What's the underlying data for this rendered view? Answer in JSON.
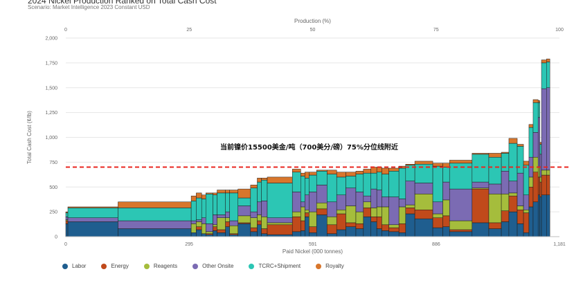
{
  "title": "2024 Nickel Production Ranked on Total Cash Cost",
  "subtitle": "Scenario: Market Intelligence 2023 Constant USD",
  "chart_data": {
    "type": "bar",
    "subtype": "stacked cost curve (variable-width)",
    "top_axis": {
      "label": "Production (%)",
      "ticks": [
        "0",
        "25",
        "50",
        "75",
        "100"
      ],
      "range": [
        0,
        100
      ]
    },
    "xlabel": "Paid Nickel (000 tonnes)",
    "x_ticks": [
      "0",
      "295",
      "591",
      "886",
      "1,181"
    ],
    "xlim": [
      0,
      1181
    ],
    "ylabel": "Total Cash Cost (¢/lb)",
    "y_ticks": [
      "0",
      "250",
      "500",
      "750",
      "1,000",
      "1,250",
      "1,500",
      "1,750",
      "2,000"
    ],
    "ylim": [
      0,
      2000
    ],
    "grid": "horizontal",
    "annotation": {
      "text": "当前镍价15500美金/吨（700美分/磅）75%分位线附近",
      "reference_line_value": 700,
      "reference_line_color": "#e8251f"
    },
    "legend_position": "bottom",
    "series": [
      {
        "name": "Labor",
        "color": "#1f5e8f"
      },
      {
        "name": "Energy",
        "color": "#c04a1b"
      },
      {
        "name": "Reagents",
        "color": "#a5bd3c"
      },
      {
        "name": "Other Onsite",
        "color": "#7b6bb3"
      },
      {
        "name": "TCRC+Shipment",
        "color": "#2cc6b4"
      },
      {
        "name": "Royalty",
        "color": "#d8762c"
      }
    ],
    "bars": [
      {
        "x0": 0,
        "x1": 5,
        "values": [
          130,
          30,
          10,
          30,
          40,
          10
        ]
      },
      {
        "x0": 5,
        "x1": 125,
        "values": [
          150,
          0,
          0,
          40,
          100,
          10
        ]
      },
      {
        "x0": 125,
        "x1": 300,
        "values": [
          80,
          0,
          0,
          80,
          130,
          60
        ]
      },
      {
        "x0": 300,
        "x1": 312,
        "values": [
          40,
          0,
          90,
          30,
          200,
          50
        ]
      },
      {
        "x0": 312,
        "x1": 325,
        "values": [
          70,
          30,
          50,
          20,
          220,
          50
        ]
      },
      {
        "x0": 325,
        "x1": 335,
        "values": [
          30,
          0,
          100,
          60,
          190,
          40
        ]
      },
      {
        "x0": 335,
        "x1": 352,
        "values": [
          20,
          10,
          20,
          80,
          300,
          10
        ]
      },
      {
        "x0": 352,
        "x1": 362,
        "values": [
          60,
          40,
          20,
          100,
          200,
          20
        ]
      },
      {
        "x0": 362,
        "x1": 382,
        "values": [
          40,
          30,
          120,
          30,
          220,
          30
        ]
      },
      {
        "x0": 382,
        "x1": 392,
        "values": [
          100,
          50,
          40,
          60,
          190,
          30
        ]
      },
      {
        "x0": 392,
        "x1": 412,
        "values": [
          20,
          10,
          80,
          50,
          280,
          30
        ]
      },
      {
        "x0": 412,
        "x1": 442,
        "values": [
          130,
          10,
          70,
          100,
          80,
          90
        ]
      },
      {
        "x0": 442,
        "x1": 458,
        "values": [
          50,
          40,
          100,
          60,
          240,
          30
        ]
      },
      {
        "x0": 458,
        "x1": 468,
        "values": [
          120,
          40,
          60,
          130,
          200,
          40
        ]
      },
      {
        "x0": 468,
        "x1": 482,
        "values": [
          30,
          50,
          120,
          160,
          210,
          20
        ]
      },
      {
        "x0": 482,
        "x1": 542,
        "values": [
          20,
          100,
          20,
          50,
          350,
          60
        ]
      },
      {
        "x0": 542,
        "x1": 562,
        "values": [
          50,
          150,
          50,
          200,
          200,
          30
        ]
      },
      {
        "x0": 562,
        "x1": 572,
        "values": [
          60,
          100,
          140,
          50,
          260,
          30
        ]
      },
      {
        "x0": 572,
        "x1": 582,
        "values": [
          200,
          40,
          30,
          150,
          170,
          60
        ]
      },
      {
        "x0": 582,
        "x1": 600,
        "values": [
          40,
          60,
          150,
          200,
          170,
          30
        ]
      },
      {
        "x0": 600,
        "x1": 625,
        "values": [
          220,
          60,
          60,
          180,
          140,
          10
        ]
      },
      {
        "x0": 625,
        "x1": 648,
        "values": [
          30,
          90,
          80,
          150,
          280,
          40
        ]
      },
      {
        "x0": 648,
        "x1": 670,
        "values": [
          70,
          160,
          40,
          150,
          180,
          50
        ]
      },
      {
        "x0": 670,
        "x1": 694,
        "values": [
          100,
          40,
          170,
          180,
          120,
          40
        ]
      },
      {
        "x0": 694,
        "x1": 712,
        "values": [
          80,
          50,
          120,
          200,
          180,
          30
        ]
      },
      {
        "x0": 712,
        "x1": 730,
        "values": [
          200,
          90,
          60,
          60,
          230,
          40
        ]
      },
      {
        "x0": 730,
        "x1": 744,
        "values": [
          150,
          50,
          90,
          190,
          160,
          60
        ]
      },
      {
        "x0": 744,
        "x1": 756,
        "values": [
          80,
          120,
          100,
          170,
          180,
          50
        ]
      },
      {
        "x0": 756,
        "x1": 773,
        "values": [
          60,
          60,
          180,
          100,
          230,
          60
        ]
      },
      {
        "x0": 773,
        "x1": 797,
        "values": [
          50,
          40,
          30,
          280,
          260,
          30
        ]
      },
      {
        "x0": 797,
        "x1": 813,
        "values": [
          40,
          90,
          170,
          80,
          310,
          20
        ]
      },
      {
        "x0": 813,
        "x1": 835,
        "values": [
          230,
          60,
          30,
          240,
          160,
          10
        ]
      },
      {
        "x0": 835,
        "x1": 878,
        "values": [
          180,
          90,
          160,
          110,
          190,
          30
        ]
      },
      {
        "x0": 878,
        "x1": 902,
        "values": [
          90,
          100,
          40,
          120,
          360,
          30
        ]
      },
      {
        "x0": 902,
        "x1": 918,
        "values": [
          100,
          110,
          160,
          180,
          150,
          40
        ]
      },
      {
        "x0": 918,
        "x1": 972,
        "values": [
          50,
          20,
          90,
          320,
          260,
          30
        ]
      },
      {
        "x0": 972,
        "x1": 1012,
        "values": [
          140,
          340,
          10,
          60,
          280,
          10
        ]
      },
      {
        "x0": 1012,
        "x1": 1042,
        "values": [
          80,
          60,
          290,
          100,
          270,
          40
        ]
      },
      {
        "x0": 1042,
        "x1": 1060,
        "values": [
          150,
          110,
          170,
          230,
          180,
          10
        ]
      },
      {
        "x0": 1060,
        "x1": 1080,
        "values": [
          250,
          160,
          30,
          120,
          380,
          50
        ]
      },
      {
        "x0": 1080,
        "x1": 1095,
        "values": [
          130,
          140,
          40,
          330,
          270,
          20
        ]
      },
      {
        "x0": 1095,
        "x1": 1108,
        "values": [
          40,
          200,
          30,
          150,
          300,
          40
        ]
      },
      {
        "x0": 1108,
        "x1": 1118,
        "values": [
          300,
          200,
          100,
          200,
          300,
          30
        ]
      },
      {
        "x0": 1118,
        "x1": 1130,
        "values": [
          350,
          300,
          150,
          250,
          300,
          30
        ]
      },
      {
        "x0": 1130,
        "x1": 1134,
        "values": [
          420,
          180,
          100,
          500,
          150,
          20
        ]
      },
      {
        "x0": 1134,
        "x1": 1138,
        "values": [
          400,
          150,
          50,
          230,
          100,
          20
        ]
      },
      {
        "x0": 1138,
        "x1": 1150,
        "values": [
          420,
          200,
          50,
          820,
          260,
          30
        ]
      },
      {
        "x0": 1150,
        "x1": 1158,
        "values": [
          420,
          200,
          50,
          830,
          260,
          30
        ]
      }
    ]
  },
  "legend": [
    "Labor",
    "Energy",
    "Reagents",
    "Other Onsite",
    "TCRC+Shipment",
    "Royalty"
  ]
}
